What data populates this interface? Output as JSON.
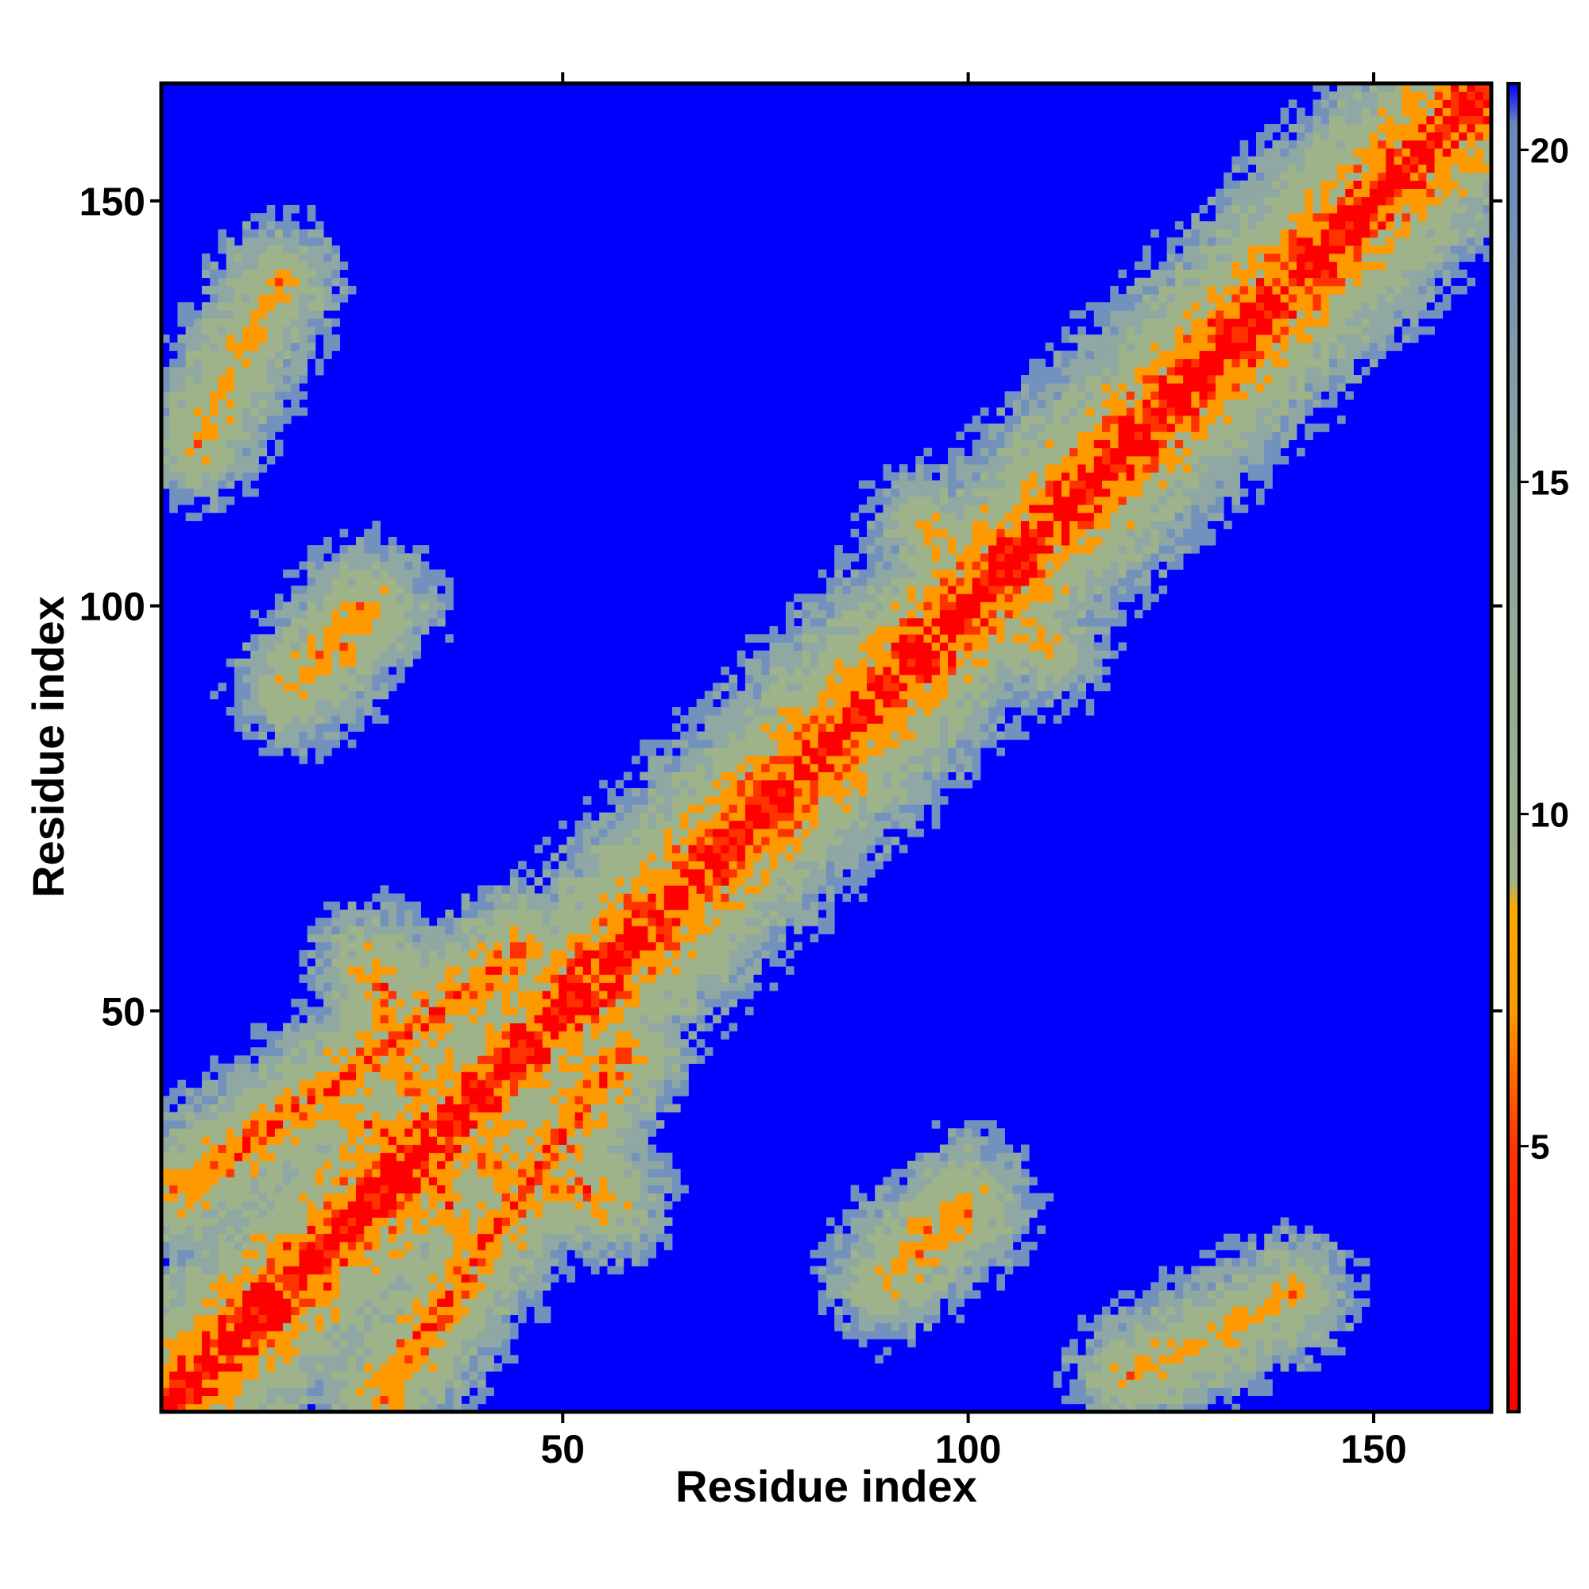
{
  "chart_data": {
    "type": "heatmap",
    "title": "",
    "xlabel": "Residue index",
    "ylabel": "Residue index",
    "n_residues": 164,
    "xlim": [
      1,
      164
    ],
    "ylim": [
      1,
      164
    ],
    "xticks": [
      50,
      100,
      150
    ],
    "yticks": [
      50,
      100,
      150
    ],
    "colorbar": {
      "ticks": [
        5,
        10,
        15,
        20
      ],
      "range": [
        1,
        21
      ],
      "position": "right",
      "colors": {
        "near": "#ff0000",
        "mid": "#ff9900",
        "far": "#9fb38a",
        "background": "#0000ff"
      }
    },
    "matrix_description_values": {
      "diagonal_value": 1,
      "background_value": 21
    },
    "contact_bands": [
      {
        "from": [
          28,
          3
        ],
        "to": [
          57,
          45
        ],
        "min_value": 4
      },
      {
        "from": [
          3,
          28
        ],
        "to": [
          45,
          57
        ],
        "min_value": 4
      },
      {
        "from": [
          22,
          37
        ],
        "to": [
          55,
          27
        ],
        "min_value": 5
      },
      {
        "from": [
          37,
          22
        ],
        "to": [
          27,
          55
        ],
        "min_value": 5
      },
      {
        "from": [
          17,
          90
        ],
        "to": [
          25,
          100
        ],
        "min_value": 6
      },
      {
        "from": [
          90,
          17
        ],
        "to": [
          100,
          25
        ],
        "min_value": 6
      },
      {
        "from": [
          92,
          20
        ],
        "to": [
          100,
          27
        ],
        "min_value": 6
      },
      {
        "from": [
          20,
          92
        ],
        "to": [
          27,
          100
        ],
        "min_value": 6
      },
      {
        "from": [
          95,
          110
        ],
        "to": [
          105,
          100
        ],
        "min_value": 7
      },
      {
        "from": [
          110,
          95
        ],
        "to": [
          100,
          105
        ],
        "min_value": 7
      },
      {
        "from": [
          120,
          5
        ],
        "to": [
          140,
          15
        ],
        "min_value": 6
      },
      {
        "from": [
          5,
          120
        ],
        "to": [
          15,
          140
        ],
        "min_value": 6
      }
    ]
  }
}
